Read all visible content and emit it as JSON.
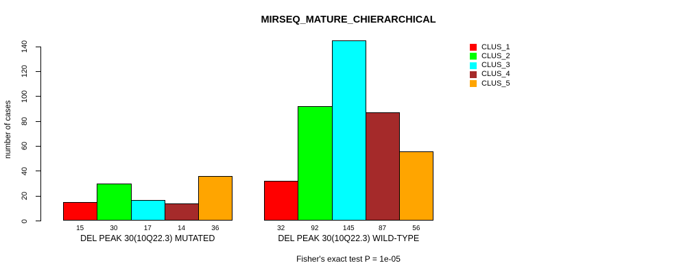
{
  "title": "MIRSEQ_MATURE_CHIERARCHICAL",
  "chart_data": {
    "type": "bar",
    "title": "MIRSEQ_MATURE_CHIERARCHICAL",
    "xlabel": "",
    "ylabel": "number of cases",
    "ylim": [
      0,
      145
    ],
    "yticks": [
      0,
      20,
      40,
      60,
      80,
      100,
      120,
      140
    ],
    "grid": false,
    "legend_position": "right",
    "categories": [
      "DEL PEAK 30(10Q22.3) MUTATED",
      "DEL PEAK 30(10Q22.3) WILD-TYPE"
    ],
    "series": [
      {
        "name": "CLUS_1",
        "color": "#ff0000",
        "values": [
          15,
          32
        ]
      },
      {
        "name": "CLUS_2",
        "color": "#00ff00",
        "values": [
          30,
          92
        ]
      },
      {
        "name": "CLUS_3",
        "color": "#00ffff",
        "values": [
          17,
          145
        ]
      },
      {
        "name": "CLUS_4",
        "color": "#a52a2a",
        "values": [
          14,
          87
        ]
      },
      {
        "name": "CLUS_5",
        "color": "#ffa500",
        "values": [
          36,
          56
        ]
      }
    ],
    "bar_value_labels_shown": true,
    "annotation": "Fisher's exact test P = 1e-05"
  }
}
